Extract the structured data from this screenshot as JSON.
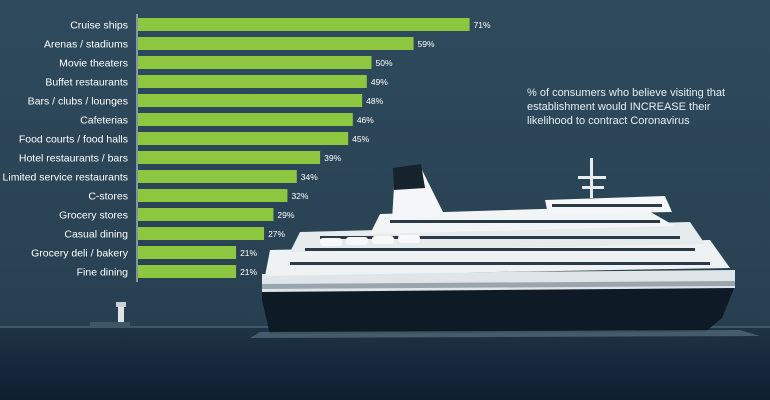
{
  "caption": {
    "line1": "% of consumers who believe visiting that",
    "line2": "establishment would INCREASE their",
    "line3": "likelihood to contract Coronavirus"
  },
  "colors": {
    "bar": "#8dc63f",
    "label": "#ffffff",
    "axis": "#dfe6ea"
  },
  "chart_data": {
    "type": "bar",
    "orientation": "horizontal",
    "categories": [
      "Cruise ships",
      "Arenas / stadiums",
      "Movie theaters",
      "Buffet restaurants",
      "Bars / clubs / lounges",
      "Cafeterias",
      "Food courts / food halls",
      "Hotel restaurants / bars",
      "Limited service restaurants",
      "C-stores",
      "Grocery stores",
      "Casual dining",
      "Grocery deli / bakery",
      "Fine dining"
    ],
    "values": [
      71,
      59,
      50,
      49,
      48,
      46,
      45,
      39,
      34,
      32,
      29,
      27,
      21,
      21
    ],
    "value_labels": [
      "71%",
      "59%",
      "50%",
      "49%",
      "48%",
      "46%",
      "45%",
      "39%",
      "34%",
      "32%",
      "29%",
      "27%",
      "21%",
      "21%"
    ],
    "unit": "%",
    "xlim": [
      0,
      100
    ],
    "grid": false
  }
}
